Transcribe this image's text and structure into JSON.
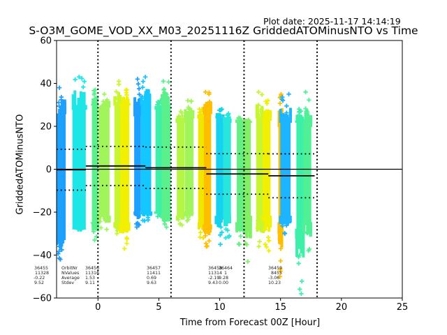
{
  "header": {
    "plot_date": "Plot date: 2025-11-17 14:14:19"
  },
  "chart_data": {
    "type": "scatter",
    "title": "S-O3M_GOME_VOD_XX_M03_20251116Z GriddedATOMinusNTO vs Time",
    "xlabel": "Time from Forecast 00Z [Hour]",
    "ylabel": "GriddedATOMinusNTO",
    "xlim": [
      -3.4,
      25
    ],
    "ylim": [
      -60,
      60
    ],
    "xticks": [
      0,
      5,
      10,
      15,
      20,
      25
    ],
    "yticks": [
      -60,
      -40,
      -20,
      0,
      20,
      40,
      60
    ],
    "grid": false,
    "reference_hline": 0,
    "forecast_vlines": [
      0,
      6,
      12,
      18
    ],
    "orbit_bands": [
      {
        "x": -3.1,
        "width": 0.9,
        "ymin": -33,
        "ymax": 26,
        "xmin_pt": -42,
        "xmax_pt": 38,
        "color": "#1ea0ff"
      },
      {
        "x": -1.55,
        "width": 1.1,
        "ymin": -28,
        "ymax": 28,
        "xmin_pt": -28,
        "xmax_pt": 43,
        "color": "#1ee6e6"
      },
      {
        "x": -0.25,
        "width": 0.5,
        "ymin": -25,
        "ymax": 30,
        "xmin_pt": -33,
        "xmax_pt": 37,
        "color": "#5af08c"
      },
      {
        "x": 0.5,
        "width": 0.9,
        "ymin": -22,
        "ymax": 29,
        "xmin_pt": -28,
        "xmax_pt": 35,
        "color": "#a0f55a"
      },
      {
        "x": 1.6,
        "width": 0.5,
        "ymin": -25,
        "ymax": 30,
        "xmin_pt": -30,
        "xmax_pt": 41,
        "color": "#c8f532"
      },
      {
        "x": 2.2,
        "width": 0.75,
        "ymin": -25,
        "ymax": 30,
        "xmin_pt": -37,
        "xmax_pt": 37,
        "color": "#f0f000"
      },
      {
        "x": 3.25,
        "width": 0.55,
        "ymin": -20,
        "ymax": 25,
        "xmin_pt": -27,
        "xmax_pt": 42,
        "color": "#1ea0ff"
      },
      {
        "x": 3.95,
        "width": 0.85,
        "ymin": -20,
        "ymax": 30,
        "xmin_pt": -24,
        "xmax_pt": 43,
        "color": "#14c8ff"
      },
      {
        "x": 5.0,
        "width": 0.55,
        "ymin": -20,
        "ymax": 28,
        "xmin_pt": -22,
        "xmax_pt": 32,
        "color": "#3cf0aa"
      },
      {
        "x": 5.6,
        "width": 0.75,
        "ymin": -22,
        "ymax": 30,
        "xmin_pt": -27,
        "xmax_pt": 41,
        "color": "#5af08c"
      },
      {
        "x": 6.8,
        "width": 0.65,
        "ymin": -22,
        "ymax": 22,
        "xmin_pt": -26,
        "xmax_pt": 27,
        "color": "#b4f546"
      },
      {
        "x": 7.5,
        "width": 0.7,
        "ymin": -20,
        "ymax": 24,
        "xmin_pt": -24,
        "xmax_pt": 32,
        "color": "#a0f55a"
      },
      {
        "x": 8.5,
        "width": 0.55,
        "ymin": -25,
        "ymax": 24,
        "xmin_pt": -32,
        "xmax_pt": 28,
        "color": "#f0e600"
      },
      {
        "x": 9.0,
        "width": 0.6,
        "ymin": -26,
        "ymax": 26,
        "xmin_pt": -36,
        "xmax_pt": 36,
        "color": "#ffbe00"
      },
      {
        "x": 10.0,
        "width": 0.6,
        "ymin": -22,
        "ymax": 24,
        "xmin_pt": -35,
        "xmax_pt": 28,
        "color": "#14d2f0"
      },
      {
        "x": 10.6,
        "width": 0.65,
        "ymin": -22,
        "ymax": 22,
        "xmin_pt": -32,
        "xmax_pt": 26,
        "color": "#28e6dc"
      },
      {
        "x": 11.7,
        "width": 0.6,
        "ymin": -25,
        "ymax": 22,
        "xmin_pt": -35,
        "xmax_pt": 24,
        "color": "#64f082"
      },
      {
        "x": 12.25,
        "width": 0.6,
        "ymin": -22,
        "ymax": 22,
        "xmin_pt": -43,
        "xmax_pt": 23,
        "color": "#82f064"
      },
      {
        "x": 13.3,
        "width": 0.6,
        "ymin": -24,
        "ymax": 24,
        "xmin_pt": -36,
        "xmax_pt": 36,
        "color": "#c8f532"
      },
      {
        "x": 13.85,
        "width": 0.65,
        "ymin": -22,
        "ymax": 23,
        "xmin_pt": -38,
        "xmax_pt": 32,
        "color": "#f0f000"
      },
      {
        "x": 15.0,
        "width": 0.35,
        "ymin": -25,
        "ymax": 20,
        "xmin_pt": -50,
        "xmax_pt": 35,
        "color": "#ffbe00"
      },
      {
        "x": 15.4,
        "width": 0.85,
        "ymin": -22,
        "ymax": 22,
        "xmin_pt": -30,
        "xmax_pt": 35,
        "color": "#1eb4ff"
      },
      {
        "x": 16.6,
        "width": 0.6,
        "ymin": -28,
        "ymax": 22,
        "xmin_pt": -58,
        "xmax_pt": 28,
        "color": "#3cf0aa"
      },
      {
        "x": 17.2,
        "width": 0.65,
        "ymin": -25,
        "ymax": 20,
        "xmin_pt": -38,
        "xmax_pt": 36,
        "color": "#50f096"
      }
    ],
    "segments": [
      {
        "orbit": "36455",
        "x_start": -3.4,
        "x_end": -1.0,
        "nvalues": "11328",
        "average": "-0.22",
        "stdev": "9.52"
      },
      {
        "orbit": "36456",
        "x_start": -1.0,
        "x_end": 3.9,
        "nvalues": "11316",
        "average": "1.53",
        "stdev": "9.11"
      },
      {
        "orbit": "36457",
        "x_start": 3.9,
        "x_end": 8.9,
        "nvalues": "11411",
        "average": "0.69",
        "stdev": "9.63"
      },
      {
        "orbit": "36458",
        "x_start": 8.9,
        "x_end": 14.0,
        "nvalues": "11314",
        "average": "-2.19",
        "stdev": "9.43"
      },
      {
        "orbit": "36464",
        "x_start": 10.3,
        "x_end": 10.3,
        "nvalues": "1",
        "average": "9.28",
        "stdev": "0.00"
      },
      {
        "orbit": "36459",
        "x_start": 14.0,
        "x_end": 17.8,
        "nvalues": "8455",
        "average": "-3.06",
        "stdev": "10.23"
      }
    ],
    "stat_labels": [
      "OrbitNr",
      "NValues",
      "Average",
      "Stdev"
    ]
  }
}
